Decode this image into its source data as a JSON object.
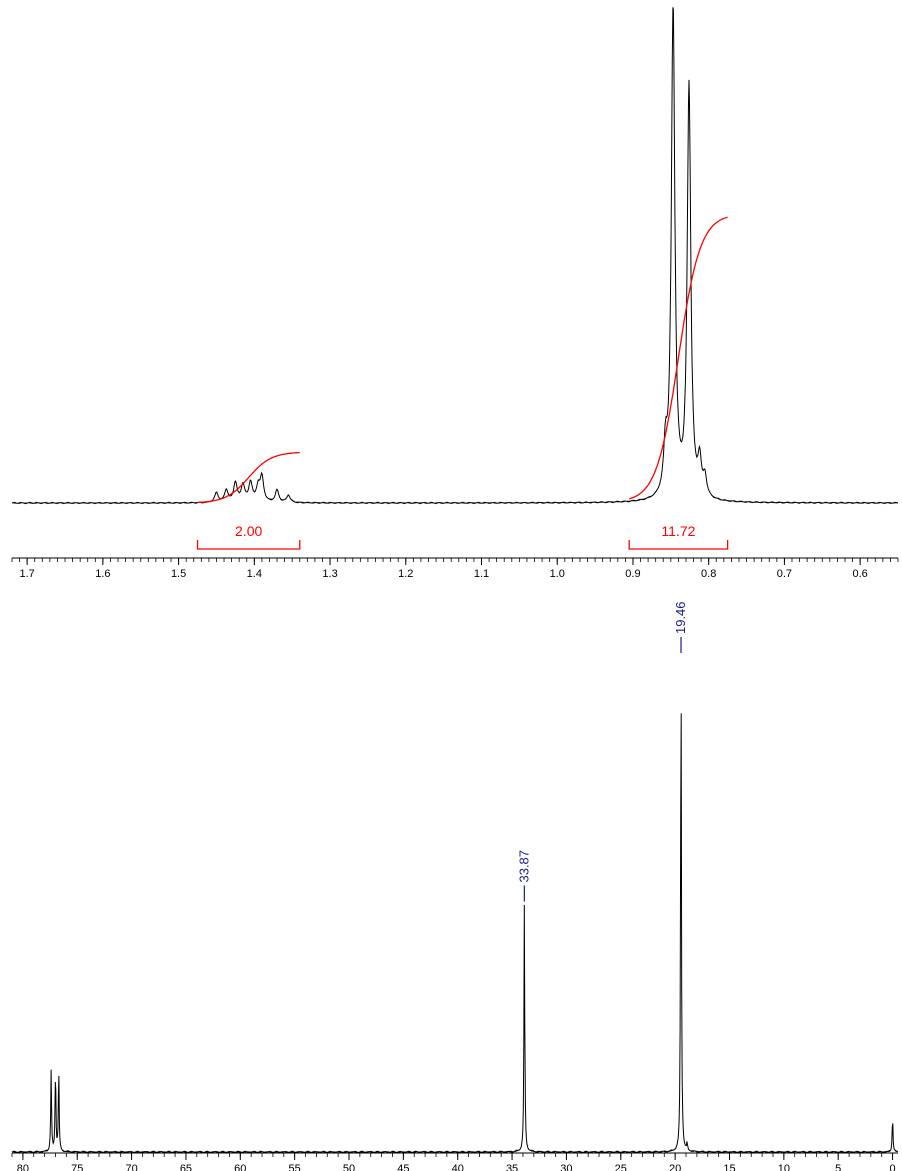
{
  "chart_data": [
    {
      "type": "line",
      "nucleus": "1H",
      "xlabel": "",
      "ylabel": "",
      "x_reversed": true,
      "xlim": [
        0.55,
        1.72
      ],
      "ticks": [
        "1.7",
        "1.6",
        "1.5",
        "1.4",
        "1.3",
        "1.2",
        "1.1",
        "1.0",
        "0.9",
        "0.8",
        "0.7",
        "0.6"
      ],
      "tick_values": [
        1.7,
        1.6,
        1.5,
        1.4,
        1.3,
        1.2,
        1.1,
        1.0,
        0.9,
        0.8,
        0.7,
        0.6
      ],
      "peaks": [
        {
          "ppm": 0.847,
          "height": 1.0
        },
        {
          "ppm": 0.826,
          "height": 0.84
        },
        {
          "ppm": 0.857,
          "height": 0.09
        },
        {
          "ppm": 0.812,
          "height": 0.07
        },
        {
          "ppm": 0.805,
          "height": 0.04
        },
        {
          "ppm": 1.45,
          "height": 0.02
        },
        {
          "ppm": 1.437,
          "height": 0.025
        },
        {
          "ppm": 1.425,
          "height": 0.04
        },
        {
          "ppm": 1.415,
          "height": 0.035
        },
        {
          "ppm": 1.405,
          "height": 0.04
        },
        {
          "ppm": 1.395,
          "height": 0.03
        },
        {
          "ppm": 1.39,
          "height": 0.05
        },
        {
          "ppm": 1.37,
          "height": 0.025
        },
        {
          "ppm": 1.355,
          "height": 0.015
        }
      ],
      "integrals": [
        {
          "label": "2.00",
          "from": 1.475,
          "to": 1.34
        },
        {
          "label": "11.72",
          "from": 0.905,
          "to": 0.775
        }
      ]
    },
    {
      "type": "line",
      "nucleus": "13C",
      "xlabel": "",
      "ylabel": "",
      "x_reversed": true,
      "xlim": [
        -0.5,
        81
      ],
      "ticks": [
        "80",
        "75",
        "70",
        "65",
        "60",
        "55",
        "50",
        "45",
        "40",
        "35",
        "30",
        "25",
        "20",
        "15",
        "10",
        "5",
        "0"
      ],
      "tick_values": [
        80,
        75,
        70,
        65,
        60,
        55,
        50,
        45,
        40,
        35,
        30,
        25,
        20,
        15,
        10,
        5,
        0
      ],
      "peaks": [
        {
          "ppm": 77.4,
          "height": 0.165
        },
        {
          "ppm": 77.0,
          "height": 0.165
        },
        {
          "ppm": 76.7,
          "height": 0.165
        },
        {
          "ppm": 33.87,
          "height": 0.5,
          "label": "33.87"
        },
        {
          "ppm": 19.46,
          "height": 1.0,
          "label": "19.46"
        },
        {
          "ppm": 18.9,
          "height": 0.015
        },
        {
          "ppm": 0.0,
          "height": 0.07
        }
      ]
    }
  ],
  "colors": {
    "trace": "#000000",
    "integral": "#ff0000",
    "peak_label": "#1a1a8c"
  }
}
